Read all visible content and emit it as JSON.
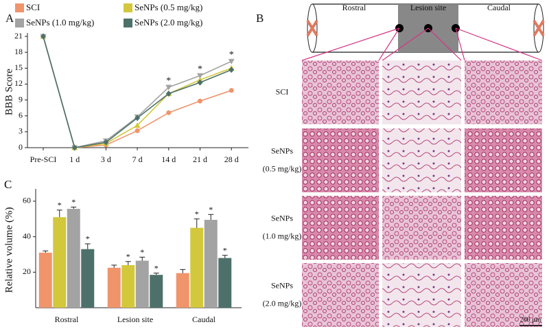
{
  "panel_labels": [
    "A",
    "B",
    "C"
  ],
  "chart_data": [
    {
      "type": "line",
      "ylabel": "BBB Score",
      "categories": [
        "Pre-SCI",
        "1 d",
        "3 d",
        "7 d",
        "14 d",
        "21 d",
        "28 d"
      ],
      "series": [
        {
          "name": "SCI",
          "color": "#f0946c",
          "marker": "circle",
          "values": [
            21,
            0,
            0.5,
            3.2,
            6.6,
            8.8,
            10.8
          ]
        },
        {
          "name": "SeNPs (0.5 mg/kg)",
          "color": "#d3c83c",
          "marker": "triangle",
          "values": [
            21,
            0,
            0.8,
            4.2,
            10.2,
            12.8,
            15.0
          ]
        },
        {
          "name": "SeNPs (1.0 mg/kg)",
          "color": "#a3a3a3",
          "marker": "triangle-down",
          "values": [
            21,
            0,
            1.3,
            5.8,
            11.4,
            13.6,
            16.3
          ]
        },
        {
          "name": "SeNPs (2.0 mg/kg)",
          "color": "#4d716a",
          "marker": "diamond",
          "values": [
            21,
            0,
            1.0,
            5.6,
            10.2,
            12.3,
            14.7
          ]
        }
      ],
      "ylim": [
        0,
        21
      ],
      "yticks": [
        0,
        3,
        6,
        9,
        12,
        15,
        18,
        21
      ],
      "annotations": [
        "*",
        "*",
        "*"
      ]
    },
    {
      "type": "bar",
      "ylabel": "Relative volume (%)",
      "categories": [
        "Rostral",
        "Lesion site",
        "Caudal"
      ],
      "series": [
        {
          "color": "#f0946c",
          "values": [
            31,
            22.5,
            19.5
          ],
          "errors": [
            1,
            1.5,
            2
          ]
        },
        {
          "color": "#d3c83c",
          "values": [
            51,
            24,
            45
          ],
          "errors": [
            4,
            2,
            5
          ]
        },
        {
          "color": "#a3a3a3",
          "values": [
            55.7,
            26.5,
            49.5
          ],
          "errors": [
            1,
            2,
            3
          ]
        },
        {
          "color": "#4d716a",
          "values": [
            33,
            18.5,
            28
          ],
          "errors": [
            3,
            1,
            1.5
          ]
        }
      ],
      "ylim": [
        0,
        65
      ],
      "yticks": [
        20,
        40,
        60
      ],
      "annotations": [
        "*",
        "*",
        "*",
        "*",
        "*",
        "*",
        "*",
        "*",
        "*"
      ]
    }
  ],
  "panel_b": {
    "regions": [
      "Rostral",
      "Lesion site",
      "Caudal"
    ],
    "rows": [
      [
        "SCI"
      ],
      [
        "SeNPs",
        "(0.5 mg/kg)"
      ],
      [
        "SeNPs",
        "(1.0 mg/kg)"
      ],
      [
        "SeNPs",
        "(2.0 mg/kg)"
      ]
    ],
    "scale_bar": "200 μm"
  }
}
